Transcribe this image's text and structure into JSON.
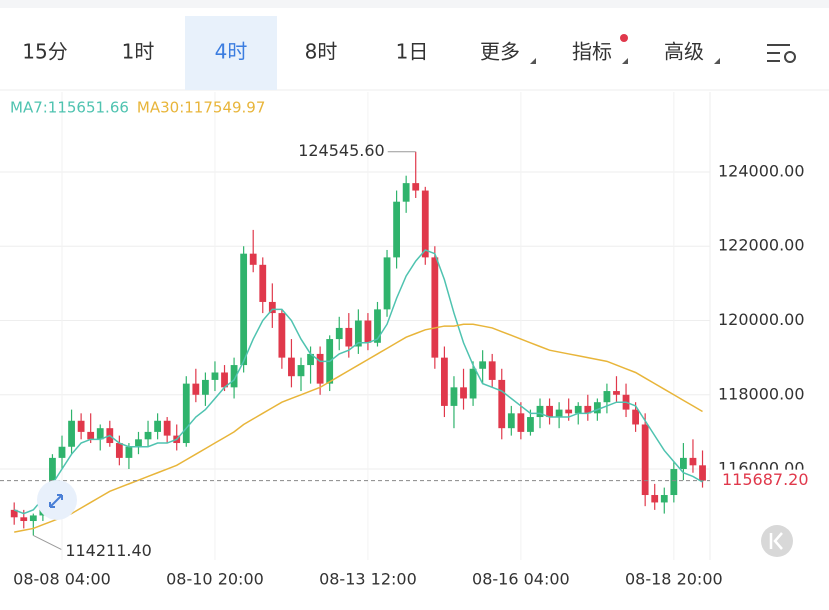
{
  "toolbar": {
    "tabs": [
      "15分",
      "1时",
      "4时",
      "8时",
      "1日",
      "更多",
      "指标",
      "高级"
    ],
    "selected_tab": 2
  },
  "chart_data": {
    "type": "candlestick",
    "categories": [
      null,
      null,
      null,
      null,
      null,
      "08-08 04:00",
      null,
      null,
      null,
      null,
      null,
      null,
      null,
      null,
      null,
      null,
      null,
      null,
      null,
      null,
      null,
      "08-10 20:00",
      null,
      null,
      null,
      null,
      null,
      null,
      null,
      null,
      null,
      null,
      null,
      null,
      null,
      null,
      null,
      "08-13 12:00",
      null,
      null,
      null,
      null,
      null,
      null,
      null,
      null,
      null,
      null,
      null,
      null,
      null,
      null,
      null,
      "08-16 04:00",
      null,
      null,
      null,
      null,
      null,
      null,
      null,
      null,
      null,
      null,
      null,
      null,
      null,
      null,
      null,
      "08-18 20:00",
      null,
      null,
      null
    ],
    "open": [
      114900,
      114700,
      114600,
      114750,
      115200,
      116300,
      116600,
      117300,
      117000,
      116800,
      117100,
      116700,
      116300,
      116600,
      116800,
      117000,
      117300,
      116900,
      116700,
      118300,
      118000,
      118400,
      118600,
      118200,
      118800,
      121800,
      121500,
      120500,
      120200,
      119000,
      118500,
      118800,
      119100,
      118300,
      119500,
      119800,
      119300,
      120000,
      119400,
      120300,
      121700,
      123200,
      123700,
      123500,
      121700,
      119000,
      117700,
      118200,
      117900,
      118700,
      118900,
      118400,
      117100,
      117500,
      117000,
      117400,
      117700,
      117400,
      117600,
      117500,
      117700,
      117500,
      117800,
      118100,
      118000,
      117600,
      117200,
      115300,
      115100,
      115300,
      116000,
      116300,
      116100
    ],
    "high": [
      115100,
      114900,
      114800,
      115300,
      116400,
      116900,
      117600,
      117500,
      117500,
      117200,
      117300,
      116900,
      116700,
      117000,
      117300,
      117500,
      117400,
      117200,
      118500,
      118700,
      118600,
      118900,
      118800,
      119000,
      122000,
      122440,
      121700,
      121000,
      120300,
      119500,
      119000,
      119300,
      119300,
      119600,
      120100,
      120200,
      120300,
      120200,
      120500,
      121900,
      123500,
      123900,
      124545.6,
      123600,
      122000,
      119300,
      118500,
      118700,
      118900,
      119200,
      119100,
      118700,
      117700,
      117800,
      117600,
      117900,
      117900,
      117800,
      117900,
      117800,
      118000,
      117900,
      118300,
      118500,
      118300,
      117800,
      117500,
      115600,
      115500,
      116200,
      116700,
      116800,
      116500
    ],
    "low": [
      114500,
      114400,
      114211.4,
      114600,
      115000,
      116000,
      116400,
      116800,
      116700,
      116500,
      116600,
      116100,
      116000,
      116400,
      116600,
      116800,
      116700,
      116500,
      116600,
      117800,
      117700,
      118100,
      118100,
      117900,
      118600,
      121300,
      120200,
      119800,
      118700,
      118200,
      118100,
      118300,
      118000,
      118100,
      119200,
      119000,
      119100,
      119200,
      119300,
      120100,
      121400,
      122900,
      123300,
      121500,
      118700,
      117400,
      117100,
      117600,
      117700,
      118300,
      118200,
      116800,
      116900,
      116800,
      116900,
      117100,
      117200,
      117100,
      117300,
      117200,
      117300,
      117300,
      117500,
      117800,
      117400,
      117000,
      115000,
      114900,
      114800,
      115100,
      115700,
      115900,
      115500
    ],
    "close": [
      114700,
      114600,
      114750,
      115200,
      116300,
      116600,
      117300,
      117000,
      116800,
      117100,
      116700,
      116300,
      116600,
      116800,
      117000,
      117300,
      116900,
      116700,
      118300,
      118000,
      118400,
      118600,
      118200,
      118800,
      121800,
      121500,
      120500,
      120200,
      119000,
      118500,
      118800,
      119100,
      118300,
      119500,
      119800,
      119300,
      120000,
      119400,
      120300,
      121700,
      123200,
      123700,
      123500,
      121700,
      119000,
      117700,
      118200,
      117900,
      118700,
      118900,
      118400,
      117100,
      117500,
      117000,
      117400,
      117700,
      117400,
      117600,
      117500,
      117700,
      117500,
      117800,
      118100,
      118000,
      117600,
      117200,
      115300,
      115100,
      115300,
      116000,
      116300,
      116100,
      115687.2
    ],
    "up_color": "#2fb36c",
    "down_color": "#e0384b",
    "series": [
      {
        "name": "MA7:115651.66",
        "color": "#4fc3b0",
        "values": [
          114900,
          114800,
          114900,
          115200,
          115600,
          116000,
          116400,
          116700,
          116800,
          116800,
          116900,
          116700,
          116600,
          116600,
          116600,
          116700,
          116700,
          116800,
          117100,
          117400,
          117600,
          117900,
          118200,
          118400,
          118900,
          119500,
          120000,
          120300,
          120300,
          120000,
          119500,
          119100,
          118900,
          118900,
          119100,
          119200,
          119400,
          119400,
          119500,
          119900,
          120600,
          121200,
          121600,
          121900,
          121800,
          121100,
          120200,
          119400,
          118800,
          118300,
          118200,
          118100,
          117900,
          117700,
          117500,
          117500,
          117400,
          117400,
          117400,
          117500,
          117500,
          117600,
          117700,
          117800,
          117800,
          117700,
          117300,
          116900,
          116500,
          116200,
          115900,
          115800,
          115651.66
        ]
      },
      {
        "name": "MA30:117549.97",
        "color": "#e8b53a",
        "values": [
          114300,
          114350,
          114400,
          114500,
          114600,
          114700,
          114800,
          114950,
          115100,
          115250,
          115400,
          115500,
          115600,
          115700,
          115800,
          115900,
          116000,
          116100,
          116250,
          116400,
          116550,
          116700,
          116850,
          117000,
          117200,
          117350,
          117500,
          117650,
          117800,
          117900,
          118000,
          118100,
          118200,
          118350,
          118500,
          118650,
          118800,
          118950,
          119100,
          119250,
          119400,
          119550,
          119650,
          119750,
          119800,
          119850,
          119850,
          119900,
          119900,
          119850,
          119800,
          119700,
          119600,
          119500,
          119400,
          119300,
          119200,
          119150,
          119100,
          119050,
          119000,
          118950,
          118900,
          118800,
          118700,
          118600,
          118450,
          118300,
          118150,
          118000,
          117850,
          117700,
          117549.97
        ]
      }
    ],
    "ylim": [
      113550,
      125400
    ],
    "yticks": [
      {
        "value": 116000,
        "label": "116000.00"
      },
      {
        "value": 118000,
        "label": "118000.00"
      },
      {
        "value": 120000,
        "label": "120000.00"
      },
      {
        "value": 122000,
        "label": "122000.00"
      },
      {
        "value": 124000,
        "label": "124000.00"
      }
    ],
    "grid": true,
    "high_label": {
      "index": 42,
      "value": 124545.6,
      "label": "124545.60"
    },
    "low_label": {
      "index": 2,
      "value": 114211.4,
      "label": "114211.40"
    },
    "last_price": {
      "value": 115687.2,
      "label": "115687.20"
    }
  }
}
